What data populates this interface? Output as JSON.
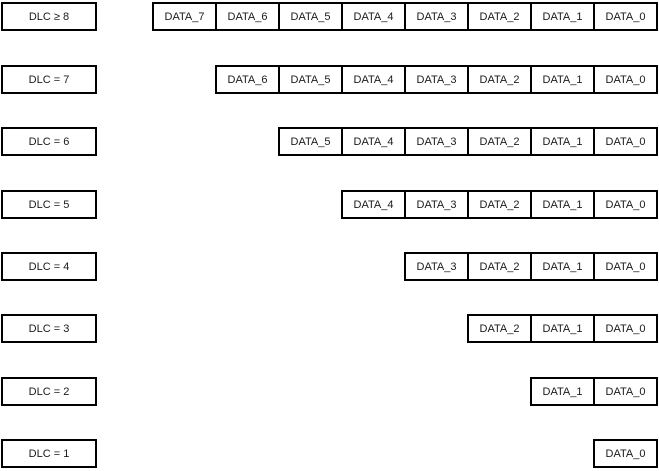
{
  "colors": {
    "border": "#000000",
    "text": "#1a1a1a",
    "background": "#ffffff"
  },
  "rows": [
    {
      "dlc_label": "DLC ≥ 8",
      "cells": [
        "DATA_7",
        "DATA_6",
        "DATA_5",
        "DATA_4",
        "DATA_3",
        "DATA_2",
        "DATA_1",
        "DATA_0"
      ]
    },
    {
      "dlc_label": "DLC = 7",
      "cells": [
        "DATA_6",
        "DATA_5",
        "DATA_4",
        "DATA_3",
        "DATA_2",
        "DATA_1",
        "DATA_0"
      ]
    },
    {
      "dlc_label": "DLC = 6",
      "cells": [
        "DATA_5",
        "DATA_4",
        "DATA_3",
        "DATA_2",
        "DATA_1",
        "DATA_0"
      ]
    },
    {
      "dlc_label": "DLC = 5",
      "cells": [
        "DATA_4",
        "DATA_3",
        "DATA_2",
        "DATA_1",
        "DATA_0"
      ]
    },
    {
      "dlc_label": "DLC = 4",
      "cells": [
        "DATA_3",
        "DATA_2",
        "DATA_1",
        "DATA_0"
      ]
    },
    {
      "dlc_label": "DLC = 3",
      "cells": [
        "DATA_2",
        "DATA_1",
        "DATA_0"
      ]
    },
    {
      "dlc_label": "DLC = 2",
      "cells": [
        "DATA_1",
        "DATA_0"
      ]
    },
    {
      "dlc_label": "DLC = 1",
      "cells": [
        "DATA_0"
      ]
    }
  ]
}
